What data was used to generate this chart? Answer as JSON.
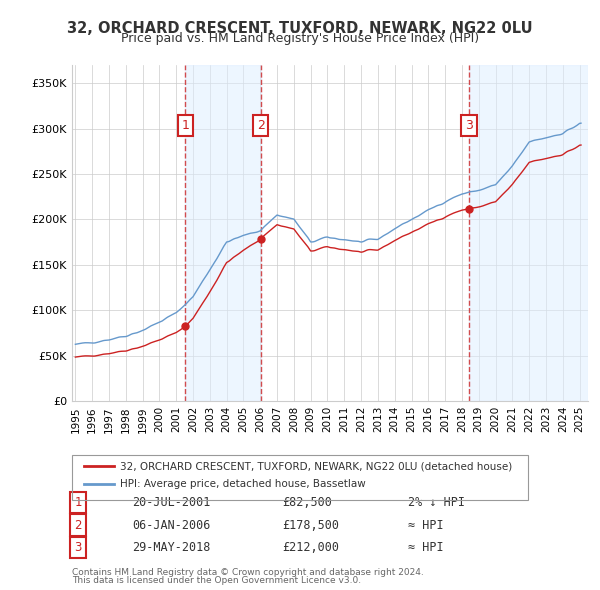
{
  "title": "32, ORCHARD CRESCENT, TUXFORD, NEWARK, NG22 0LU",
  "subtitle": "Price paid vs. HM Land Registry's House Price Index (HPI)",
  "xlabel": "",
  "ylabel": "",
  "ylim": [
    0,
    370000
  ],
  "xlim_start": 1995.0,
  "xlim_end": 2025.5,
  "yticks": [
    0,
    50000,
    100000,
    150000,
    200000,
    250000,
    300000,
    350000
  ],
  "ytick_labels": [
    "£0",
    "£50K",
    "£100K",
    "£150K",
    "£200K",
    "£250K",
    "£300K",
    "£350K"
  ],
  "xticks": [
    1995,
    1996,
    1997,
    1998,
    1999,
    2000,
    2001,
    2002,
    2003,
    2004,
    2005,
    2006,
    2007,
    2008,
    2009,
    2010,
    2011,
    2012,
    2013,
    2014,
    2015,
    2016,
    2017,
    2018,
    2019,
    2020,
    2021,
    2022,
    2023,
    2024,
    2025
  ],
  "hpi_color": "#6699cc",
  "price_color": "#cc2222",
  "sale_marker_color": "#cc2222",
  "vline_color": "#cc2222",
  "background_color": "#ffffff",
  "plot_bg_color": "#ffffff",
  "grid_color": "#cccccc",
  "label_box_color": "#cc2222",
  "shade_color": "#ddeeff",
  "sales": [
    {
      "num": 1,
      "year": 2001.55,
      "price": 82500
    },
    {
      "num": 2,
      "year": 2006.02,
      "price": 178500
    },
    {
      "num": 3,
      "year": 2018.41,
      "price": 212000
    }
  ],
  "legend_line1": "32, ORCHARD CRESCENT, TUXFORD, NEWARK, NG22 0LU (detached house)",
  "legend_line2": "HPI: Average price, detached house, Bassetlaw",
  "table_data": [
    {
      "num": 1,
      "date": "20-JUL-2001",
      "price": "£82,500",
      "relation": "2% ↓ HPI"
    },
    {
      "num": 2,
      "date": "06-JAN-2006",
      "price": "£178,500",
      "relation": "≈ HPI"
    },
    {
      "num": 3,
      "date": "29-MAY-2018",
      "price": "£212,000",
      "relation": "≈ HPI"
    }
  ],
  "footnote1": "Contains HM Land Registry data © Crown copyright and database right 2024.",
  "footnote2": "This data is licensed under the Open Government Licence v3.0."
}
